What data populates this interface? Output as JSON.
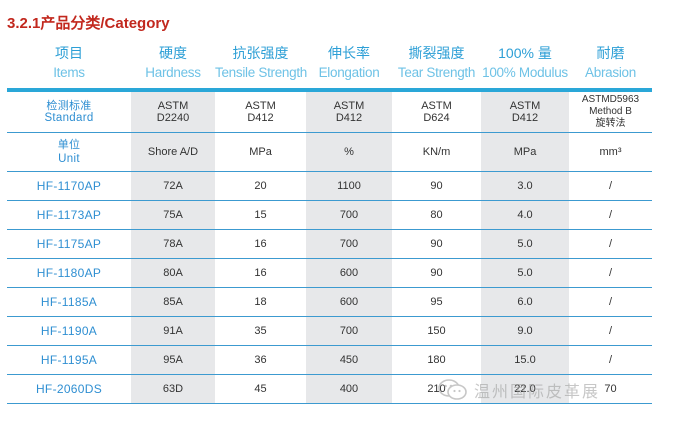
{
  "title": "3.2.1产品分类/Category",
  "header": [
    {
      "cn": "项目",
      "en": "Items"
    },
    {
      "cn": "硬度",
      "en": "Hardness"
    },
    {
      "cn": "抗张强度",
      "en": "Tensile Strength"
    },
    {
      "cn": "伸长率",
      "en": "Elongation"
    },
    {
      "cn": "撕裂强度",
      "en": "Tear Strength"
    },
    {
      "cn": "100% 量",
      "en": "100% Modulus"
    },
    {
      "cn": "耐磨",
      "en": "Abrasion"
    }
  ],
  "standard_row": {
    "label_cn": "检测标准",
    "label_en": "Standard",
    "cells": [
      [
        "ASTM",
        "D2240"
      ],
      [
        "ASTM",
        "D412"
      ],
      [
        "ASTM",
        "D412"
      ],
      [
        "ASTM",
        "D624"
      ],
      [
        "ASTM",
        "D412"
      ],
      [
        "ASTMD5963",
        "Method B",
        "旋转法"
      ]
    ]
  },
  "unit_row": {
    "label_cn": "单位",
    "label_en": "Unit",
    "cells": [
      "Shore A/D",
      "MPa",
      "%",
      "KN/m",
      "MPa",
      "mm³"
    ]
  },
  "rows": [
    [
      "HF-1170AP",
      "72A",
      "20",
      "1100",
      "90",
      "3.0",
      "/"
    ],
    [
      "HF-1173AP",
      "75A",
      "15",
      "700",
      "80",
      "4.0",
      "/"
    ],
    [
      "HF-1175AP",
      "78A",
      "16",
      "700",
      "90",
      "5.0",
      "/"
    ],
    [
      "HF-1180AP",
      "80A",
      "16",
      "600",
      "90",
      "5.0",
      "/"
    ],
    [
      "HF-1185A",
      "85A",
      "18",
      "600",
      "95",
      "6.0",
      "/"
    ],
    [
      "HF-1190A",
      "91A",
      "35",
      "700",
      "150",
      "9.0",
      "/"
    ],
    [
      "HF-1195A",
      "95A",
      "36",
      "450",
      "180",
      "15.0",
      "/"
    ],
    [
      "HF-2060DS",
      "63D",
      "45",
      "400",
      "210",
      "22.0",
      "70"
    ]
  ],
  "watermark": "温州国际皮革展",
  "colors": {
    "title": "#c2281e",
    "header_text": "#2d9fd6",
    "header_rule": "#2aa7d8",
    "row_rule": "#3c9ad0",
    "shaded_column": "#e7e8ea",
    "model_text": "#2f8fd2"
  }
}
